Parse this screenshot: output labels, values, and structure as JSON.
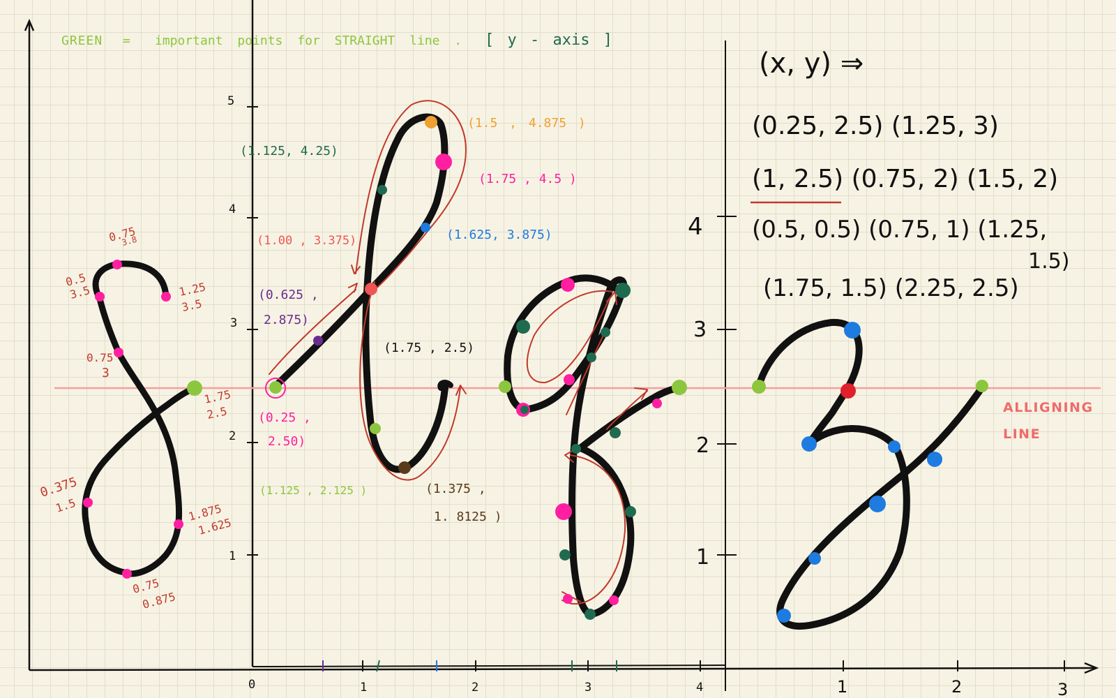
{
  "legend": {
    "green_label": "GREEN",
    "equals": "=",
    "green_desc": "important points for STRAIGHT line .",
    "y_axis_note": "[ y - axis ]"
  },
  "allign_line_label": [
    "ALLIGNING",
    "LINE"
  ],
  "axes": {
    "y_ticks": [
      "1",
      "2",
      "3",
      "4",
      "5"
    ],
    "x_ticks": [
      "0",
      "1",
      "2",
      "3",
      "4"
    ],
    "right_y_ticks": [
      "1",
      "2",
      "3",
      "4"
    ],
    "right_x_ticks": [
      "1",
      "2",
      "3"
    ]
  },
  "letter_s_labels": [
    "0.75",
    "3.8",
    "0.5",
    "3.5",
    "1.25",
    "3.5",
    "0.75",
    "3",
    "1.75",
    "2.5",
    "0.375",
    "1.5",
    "1.875",
    "1.625",
    "0.75",
    "0.875"
  ],
  "letter_l_labels": [
    "(1.125, 4.25)",
    "(1.5 , 4.875 )",
    "(1.75 , 4.5 )",
    "(1.00 , 3.375)",
    "(1.625, 3.875)",
    "(0.625 ,",
    "2.875)",
    "(1.75 , 2.5)",
    "(0.25 ,",
    "2.50)",
    "(1.125 , 2.125 )",
    "(1.375 ,",
    "1. 8125 )"
  ],
  "letter_3_notes": {
    "heading": "(x, y) ⇒",
    "rows": [
      "(0.25, 2.5) (1.25, 3)",
      "(1, 2.5) (0.75, 2) (1.5, 2)",
      "(0.5, 0.5) (0.75, 1) (1.25,",
      "1.5)",
      "(1.75, 1.5) (2.25, 2.5)"
    ]
  },
  "colors": {
    "ink": "#111111",
    "green": "#8cc63f",
    "dark_green": "#1f6b4f",
    "pink": "#ff1fa0",
    "red": "#c0392b",
    "red_text": "#c0392b",
    "orange": "#f0a030",
    "blue": "#1e7be0",
    "purple": "#6a2d8f",
    "brown": "#5a3a1a",
    "allign_line": "#f3a0a0",
    "salmon_text": "#ee6b6b"
  }
}
